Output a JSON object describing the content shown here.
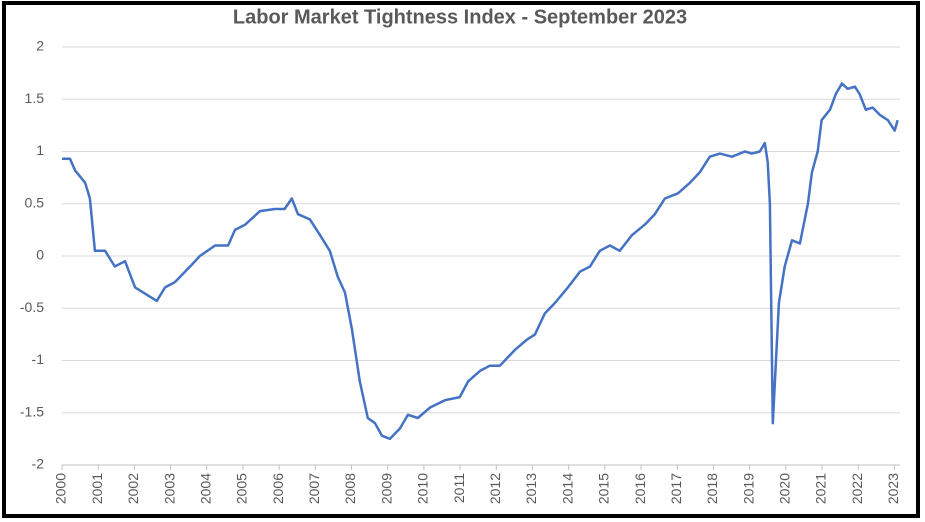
{
  "chart_data": {
    "type": "line",
    "title": "Labor Market Tightness Index - September 2023",
    "x": [
      2000.0,
      2000.22,
      2000.36,
      2000.64,
      2000.77,
      2000.91,
      2001.19,
      2001.46,
      2001.74,
      2002.02,
      2002.29,
      2002.62,
      2002.85,
      2003.12,
      2003.54,
      2003.81,
      2004.23,
      2004.59,
      2004.78,
      2005.06,
      2005.47,
      2005.88,
      2006.15,
      2006.35,
      2006.52,
      2006.85,
      2007.13,
      2007.4,
      2007.62,
      2007.82,
      2008.01,
      2008.23,
      2008.45,
      2008.65,
      2008.84,
      2009.06,
      2009.34,
      2009.56,
      2009.83,
      2010.17,
      2010.58,
      2010.99,
      2011.22,
      2011.55,
      2011.82,
      2012.1,
      2012.51,
      2012.85,
      2013.07,
      2013.34,
      2013.62,
      2013.98,
      2014.31,
      2014.59,
      2014.86,
      2015.14,
      2015.41,
      2015.75,
      2016.1,
      2016.38,
      2016.66,
      2017.02,
      2017.35,
      2017.62,
      2017.9,
      2018.18,
      2018.51,
      2018.87,
      2019.06,
      2019.28,
      2019.42,
      2019.5,
      2019.56,
      2019.64,
      2019.81,
      2019.97,
      2020.17,
      2020.39,
      2020.61,
      2020.72,
      2020.88,
      2020.99,
      2021.22,
      2021.38,
      2021.55,
      2021.71,
      2021.91,
      2022.04,
      2022.21,
      2022.4,
      2022.6,
      2022.82,
      2023.01,
      2023.09
    ],
    "series": [
      {
        "name": "Labor Market Tightness Index",
        "color": "#4472c4",
        "values": [
          0.93,
          0.93,
          0.82,
          0.7,
          0.55,
          0.05,
          0.05,
          -0.1,
          -0.05,
          -0.3,
          -0.36,
          -0.43,
          -0.3,
          -0.25,
          -0.1,
          0.0,
          0.1,
          0.1,
          0.25,
          0.3,
          0.43,
          0.45,
          0.45,
          0.55,
          0.4,
          0.35,
          0.2,
          0.05,
          -0.2,
          -0.35,
          -0.7,
          -1.2,
          -1.55,
          -1.6,
          -1.72,
          -1.75,
          -1.65,
          -1.52,
          -1.55,
          -1.45,
          -1.38,
          -1.35,
          -1.2,
          -1.1,
          -1.05,
          -1.05,
          -0.9,
          -0.8,
          -0.75,
          -0.55,
          -0.45,
          -0.3,
          -0.15,
          -0.1,
          0.05,
          0.1,
          0.05,
          0.2,
          0.3,
          0.4,
          0.55,
          0.6,
          0.7,
          0.8,
          0.95,
          0.98,
          0.95,
          1.0,
          0.98,
          1.0,
          1.08,
          0.9,
          0.5,
          -1.6,
          -0.45,
          -0.1,
          0.15,
          0.12,
          0.5,
          0.8,
          1.0,
          1.3,
          1.4,
          1.55,
          1.65,
          1.6,
          1.62,
          1.55,
          1.4,
          1.42,
          1.35,
          1.3,
          1.2,
          1.3
        ]
      }
    ],
    "xlim": [
      2000,
      2023.1
    ],
    "xticks": [
      2000,
      2001,
      2002,
      2003,
      2004,
      2005,
      2006,
      2007,
      2008,
      2009,
      2010,
      2011,
      2012,
      2013,
      2014,
      2015,
      2016,
      2017,
      2018,
      2019,
      2020,
      2021,
      2022,
      2023
    ],
    "ylim": [
      -2,
      2
    ],
    "yticks": [
      -2,
      -1.5,
      -1,
      -0.5,
      0,
      0.5,
      1,
      1.5,
      2
    ],
    "grid": true
  }
}
